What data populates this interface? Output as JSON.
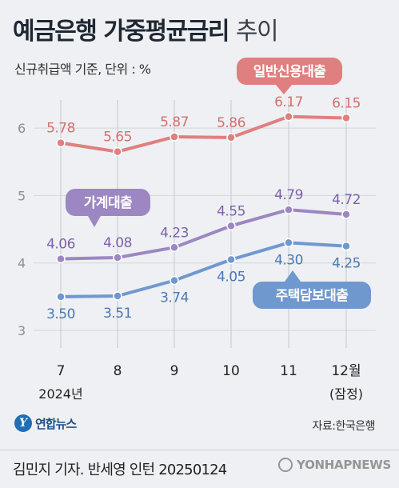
{
  "header": {
    "title_bold": "예금은행 가중평균금리",
    "title_light": "추이",
    "subtitle": "신규취급액 기준, 단위 : %"
  },
  "chart_data": {
    "type": "line",
    "x": [
      "7",
      "8",
      "9",
      "10",
      "11",
      "12월"
    ],
    "x_sublabels": [
      "2024년",
      "",
      "",
      "",
      "",
      "(잠정)"
    ],
    "ylim": [
      3,
      6.3
    ],
    "yticks": [
      3,
      4,
      5,
      6
    ],
    "series": [
      {
        "name": "일반신용대출",
        "values": [
          5.78,
          5.65,
          5.87,
          5.86,
          6.17,
          6.15
        ],
        "labels": [
          "5.78",
          "5.65",
          "5.87",
          "5.86",
          "6.17",
          "6.15"
        ],
        "color": "#e07f7f",
        "label_color": "#d4706e",
        "label_pos": [
          "above",
          "above",
          "above",
          "above",
          "above",
          "above"
        ]
      },
      {
        "name": "가계대출",
        "values": [
          4.06,
          4.08,
          4.23,
          4.55,
          4.79,
          4.72
        ],
        "labels": [
          "4.06",
          "4.08",
          "4.23",
          "4.55",
          "4.79",
          "4.72"
        ],
        "color": "#9c87c2",
        "label_color": "#7d62a9",
        "label_pos": [
          "above",
          "above",
          "above",
          "above",
          "above",
          "above"
        ]
      },
      {
        "name": "주택담보대출",
        "values": [
          3.5,
          3.51,
          3.74,
          4.05,
          4.3,
          4.25
        ],
        "labels": [
          "3.50",
          "3.51",
          "3.74",
          "4.05",
          "4.30",
          "4.25"
        ],
        "color": "#6f98cf",
        "label_color": "#4d78b3",
        "label_pos": [
          "below",
          "below",
          "below",
          "below",
          "below",
          "below"
        ]
      }
    ],
    "grid": true,
    "legend": "callouts"
  },
  "footer": {
    "logo_mark": "Y",
    "logo_text": "연합뉴스",
    "source": "자료:한국은행",
    "credit": "김민지 기자. 반세영 인턴  20250124",
    "watermark": "YONHAPNEWS"
  }
}
